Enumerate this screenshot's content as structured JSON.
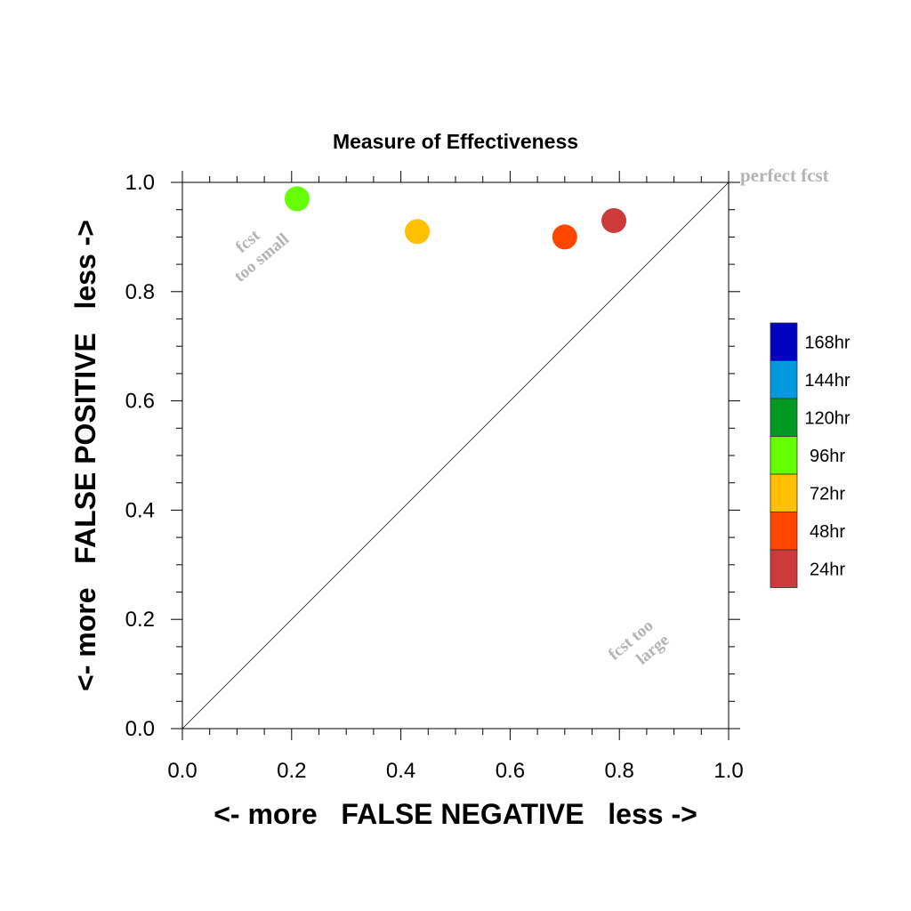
{
  "chart_data": {
    "type": "scatter",
    "title": "Measure of Effectiveness",
    "xlabel": "<- more   FALSE NEGATIVE   less ->",
    "ylabel": "<- more   FALSE POSITIVE   less ->",
    "xlim": [
      0.0,
      1.0
    ],
    "ylim": [
      0.0,
      1.0
    ],
    "xticks": [
      "0.0",
      "0.2",
      "0.4",
      "0.6",
      "0.8",
      "1.0"
    ],
    "yticks": [
      "0.0",
      "0.2",
      "0.4",
      "0.6",
      "0.8",
      "1.0"
    ],
    "grid": false,
    "diagonal_line": true,
    "annotations": {
      "perfect": "perfect fcst",
      "too_small_line1": "fcst",
      "too_small_line2": "too small",
      "too_large_line1": "fcst too",
      "too_large_line2": "large"
    },
    "points": [
      {
        "label": "96hr",
        "x": 0.21,
        "y": 0.97,
        "color": "#66ff00"
      },
      {
        "label": "72hr",
        "x": 0.43,
        "y": 0.91,
        "color": "#ffc000"
      },
      {
        "label": "48hr",
        "x": 0.7,
        "y": 0.9,
        "color": "#ff4500"
      },
      {
        "label": "24hr",
        "x": 0.79,
        "y": 0.93,
        "color": "#cc3a3a"
      }
    ],
    "legend": {
      "placement": "right",
      "entries": [
        {
          "label": "168hr",
          "color": "#0000c0"
        },
        {
          "label": "144hr",
          "color": "#0099dd"
        },
        {
          "label": "120hr",
          "color": "#009922"
        },
        {
          "label": "96hr",
          "color": "#66ff00"
        },
        {
          "label": "72hr",
          "color": "#ffc000"
        },
        {
          "label": "48hr",
          "color": "#ff4500"
        },
        {
          "label": "24hr",
          "color": "#cc3a3a"
        }
      ]
    }
  }
}
